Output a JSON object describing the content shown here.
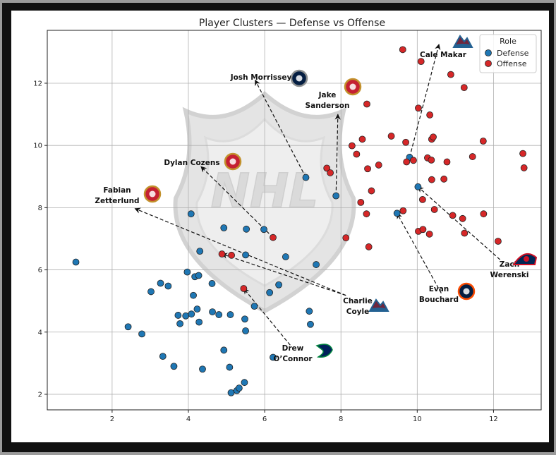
{
  "chart_data": {
    "type": "scatter",
    "title": "Player Clusters — Defense vs Offense",
    "xlabel": "",
    "ylabel": "",
    "xlim": [
      0.3,
      13.25
    ],
    "ylim": [
      1.5,
      13.7
    ],
    "xticks": [
      2,
      4,
      6,
      8,
      10,
      12
    ],
    "yticks": [
      2,
      4,
      6,
      8,
      10,
      12
    ],
    "grid": true,
    "legend": {
      "title": "Role",
      "location": "top-right",
      "entries": [
        {
          "label": "Defense",
          "color": "#1f77b4"
        },
        {
          "label": "Offense",
          "color": "#d62728"
        }
      ]
    },
    "background_watermark": "NHL",
    "series": [
      {
        "name": "Defense",
        "color": "#1f77b4",
        "points": [
          [
            1.05,
            6.25
          ],
          [
            2.42,
            4.17
          ],
          [
            2.78,
            3.94
          ],
          [
            3.02,
            5.3
          ],
          [
            3.27,
            5.57
          ],
          [
            3.47,
            5.48
          ],
          [
            3.33,
            3.22
          ],
          [
            3.62,
            2.9
          ],
          [
            3.73,
            4.54
          ],
          [
            3.78,
            4.27
          ],
          [
            3.93,
            4.52
          ],
          [
            3.97,
            5.93
          ],
          [
            4.08,
            4.58
          ],
          [
            4.13,
            5.18
          ],
          [
            4.17,
            5.78
          ],
          [
            4.23,
            4.74
          ],
          [
            4.27,
            5.82
          ],
          [
            4.28,
            4.32
          ],
          [
            4.3,
            6.6
          ],
          [
            4.37,
            2.81
          ],
          [
            4.07,
            7.8
          ],
          [
            4.62,
            5.56
          ],
          [
            4.63,
            4.65
          ],
          [
            4.8,
            4.56
          ],
          [
            4.93,
            3.42
          ],
          [
            4.93,
            7.35
          ],
          [
            5.08,
            2.87
          ],
          [
            5.1,
            4.56
          ],
          [
            5.12,
            2.05
          ],
          [
            5.27,
            2.12
          ],
          [
            5.33,
            2.2
          ],
          [
            5.47,
            2.38
          ],
          [
            5.48,
            4.42
          ],
          [
            5.5,
            4.04
          ],
          [
            5.52,
            7.31
          ],
          [
            5.5,
            6.48
          ],
          [
            5.73,
            4.83
          ],
          [
            5.98,
            7.3
          ],
          [
            6.13,
            5.27
          ],
          [
            6.22,
            3.19
          ],
          [
            6.37,
            5.52
          ],
          [
            6.55,
            6.42
          ],
          [
            7.08,
            8.97
          ],
          [
            7.17,
            4.67
          ],
          [
            7.2,
            4.25
          ],
          [
            7.35,
            6.17
          ],
          [
            7.87,
            8.38
          ],
          [
            9.47,
            7.82
          ],
          [
            9.8,
            9.62
          ],
          [
            10.02,
            8.67
          ]
        ]
      },
      {
        "name": "Offense",
        "color": "#d62728",
        "points": [
          [
            9.62,
            13.08
          ],
          [
            10.1,
            12.7
          ],
          [
            10.88,
            12.28
          ],
          [
            11.23,
            11.86
          ],
          [
            8.68,
            11.33
          ],
          [
            10.03,
            11.2
          ],
          [
            10.33,
            10.98
          ],
          [
            8.41,
            9.72
          ],
          [
            8.29,
            9.99
          ],
          [
            8.56,
            10.2
          ],
          [
            9.32,
            10.3
          ],
          [
            9.7,
            10.1
          ],
          [
            10.38,
            10.2
          ],
          [
            10.42,
            10.27
          ],
          [
            11.73,
            10.14
          ],
          [
            7.63,
            9.27
          ],
          [
            7.72,
            9.12
          ],
          [
            8.7,
            9.25
          ],
          [
            8.99,
            9.37
          ],
          [
            9.72,
            9.47
          ],
          [
            9.9,
            9.52
          ],
          [
            10.27,
            9.6
          ],
          [
            10.37,
            9.53
          ],
          [
            10.78,
            9.47
          ],
          [
            11.45,
            9.64
          ],
          [
            12.77,
            9.74
          ],
          [
            12.8,
            9.28
          ],
          [
            10.38,
            8.9
          ],
          [
            10.7,
            8.92
          ],
          [
            8.8,
            8.54
          ],
          [
            8.52,
            8.17
          ],
          [
            10.14,
            8.26
          ],
          [
            8.67,
            7.8
          ],
          [
            9.63,
            7.9
          ],
          [
            10.45,
            7.94
          ],
          [
            10.93,
            7.75
          ],
          [
            11.19,
            7.65
          ],
          [
            11.74,
            7.8
          ],
          [
            10.03,
            7.24
          ],
          [
            10.15,
            7.3
          ],
          [
            10.32,
            7.15
          ],
          [
            11.24,
            7.18
          ],
          [
            12.12,
            6.92
          ],
          [
            8.13,
            7.03
          ],
          [
            8.73,
            6.74
          ],
          [
            6.22,
            7.04
          ],
          [
            4.88,
            6.51
          ],
          [
            5.13,
            6.47
          ],
          [
            5.45,
            5.4
          ]
        ]
      }
    ],
    "annotations": [
      {
        "text": "Cale Makar",
        "arrow_from": [
          10.57,
          13.25
        ],
        "arrow_to": [
          9.8,
          9.62
        ],
        "logo": "colorado-avalanche"
      },
      {
        "text": "Josh Morrissey",
        "arrow_from": [
          5.75,
          12.1
        ],
        "arrow_to": [
          7.08,
          8.97
        ],
        "logo": "winnipeg-jets"
      },
      {
        "text": "Jake\nSanderson",
        "arrow_from": [
          7.92,
          11.0
        ],
        "arrow_to": [
          7.87,
          8.38
        ],
        "logo": "ottawa-senators"
      },
      {
        "text": "Dylan Cozens",
        "arrow_from": [
          4.33,
          9.32
        ],
        "arrow_to": [
          6.22,
          7.04
        ],
        "logo": "buffalo-sabres-shown-as-senators"
      },
      {
        "text": "Fabian\nZetterlund",
        "arrow_from": [
          2.6,
          7.97
        ],
        "arrow_to": [
          8.13,
          5.18
        ],
        "logo": "ottawa-senators"
      },
      {
        "text": "Zach\nWerenski",
        "arrow_from": [
          10.02,
          8.67
        ],
        "arrow_to": [
          12.17,
          6.33
        ],
        "logo": "columbus-blue-jackets"
      },
      {
        "text": "Evan\nBouchard",
        "arrow_from": [
          9.47,
          7.82
        ],
        "arrow_to": [
          10.63,
          5.25
        ],
        "logo": "edmonton-oilers"
      },
      {
        "text": "Charlie\nCoyle",
        "arrow_from": [
          4.88,
          6.51
        ],
        "arrow_to": [
          8.13,
          5.18
        ],
        "logo": "colorado-avalanche"
      },
      {
        "text": "Drew\nO’Connor",
        "arrow_from": [
          5.45,
          5.4
        ],
        "arrow_to": [
          6.67,
          3.58
        ],
        "logo": "vancouver-canucks"
      }
    ]
  }
}
